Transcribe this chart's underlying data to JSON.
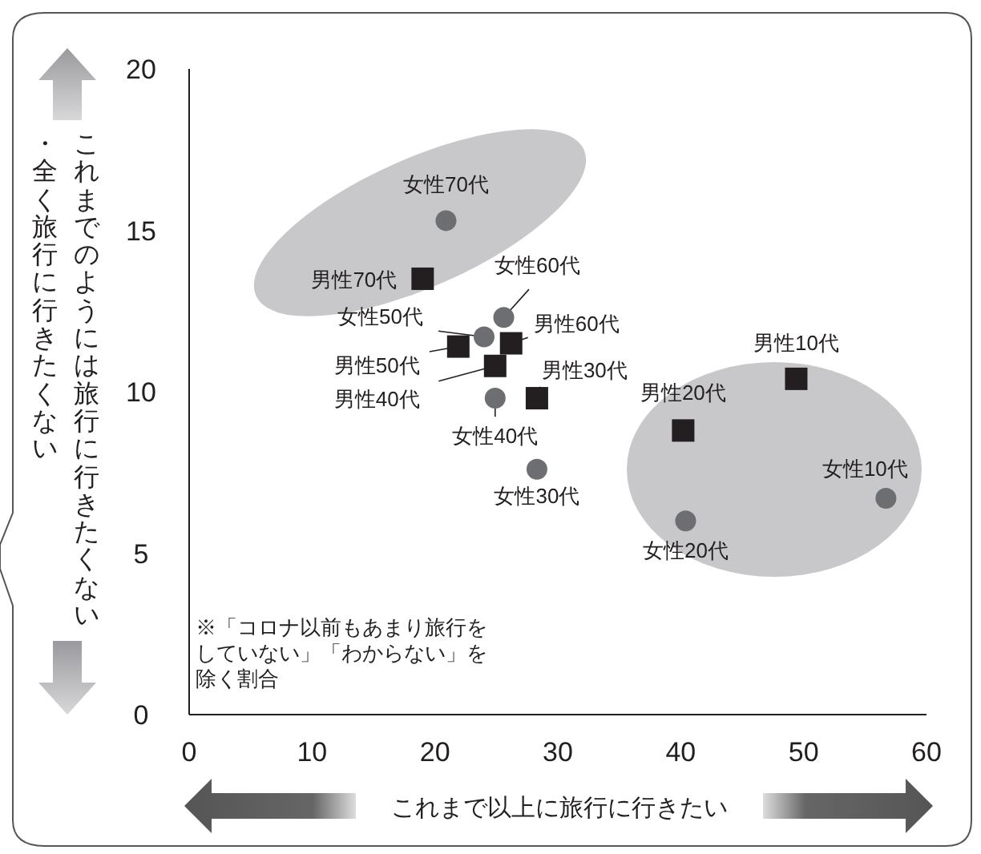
{
  "chart_data": {
    "type": "scatter",
    "xlabel": "これまで以上に旅行に行きたい",
    "ylabel": "これまでのようには旅行に行きたくない・全く旅行に行きたくない",
    "xlim": [
      0,
      60
    ],
    "ylim": [
      0,
      20
    ],
    "xticks": [
      0,
      10,
      20,
      30,
      40,
      50,
      60
    ],
    "yticks": [
      0,
      5,
      10,
      15,
      20
    ],
    "series": [
      {
        "color": "#231f20",
        "marker": "square",
        "x": [
          19.0,
          26.2,
          21.9,
          24.9,
          28.3,
          40.2,
          49.4
        ],
        "values": [
          13.5,
          11.5,
          11.4,
          10.8,
          9.8,
          8.8,
          10.4
        ]
      },
      {
        "color": "#6d6e71",
        "marker": "circle",
        "x": [
          20.9,
          25.6,
          24.0,
          24.9,
          28.3,
          40.4,
          56.7
        ],
        "values": [
          15.3,
          12.3,
          11.7,
          9.8,
          7.6,
          6.0,
          6.7
        ]
      }
    ],
    "annotations": [
      {
        "text": "女性70代",
        "x": 20.9,
        "y": 15.3
      },
      {
        "text": "男性70代",
        "x": 19.0,
        "y": 13.5
      },
      {
        "text": "女性60代",
        "x": 25.6,
        "y": 12.3
      },
      {
        "text": "女性50代",
        "x": 24.0,
        "y": 11.7
      },
      {
        "text": "男性60代",
        "x": 26.2,
        "y": 11.5
      },
      {
        "text": "男性50代",
        "x": 21.9,
        "y": 11.4
      },
      {
        "text": "男性40代",
        "x": 24.9,
        "y": 10.8
      },
      {
        "text": "女性40代",
        "x": 24.9,
        "y": 9.8
      },
      {
        "text": "男性30代",
        "x": 28.3,
        "y": 9.8
      },
      {
        "text": "女性30代",
        "x": 28.3,
        "y": 7.6
      },
      {
        "text": "男性10代",
        "x": 49.4,
        "y": 10.4
      },
      {
        "text": "男性20代",
        "x": 40.2,
        "y": 8.8
      },
      {
        "text": "女性20代",
        "x": 40.4,
        "y": 6.0
      },
      {
        "text": "女性10代",
        "x": 56.7,
        "y": 6.7
      },
      "※「コロナ以前もあまり旅行をしていない」「わからない」を除く割合"
    ]
  }
}
